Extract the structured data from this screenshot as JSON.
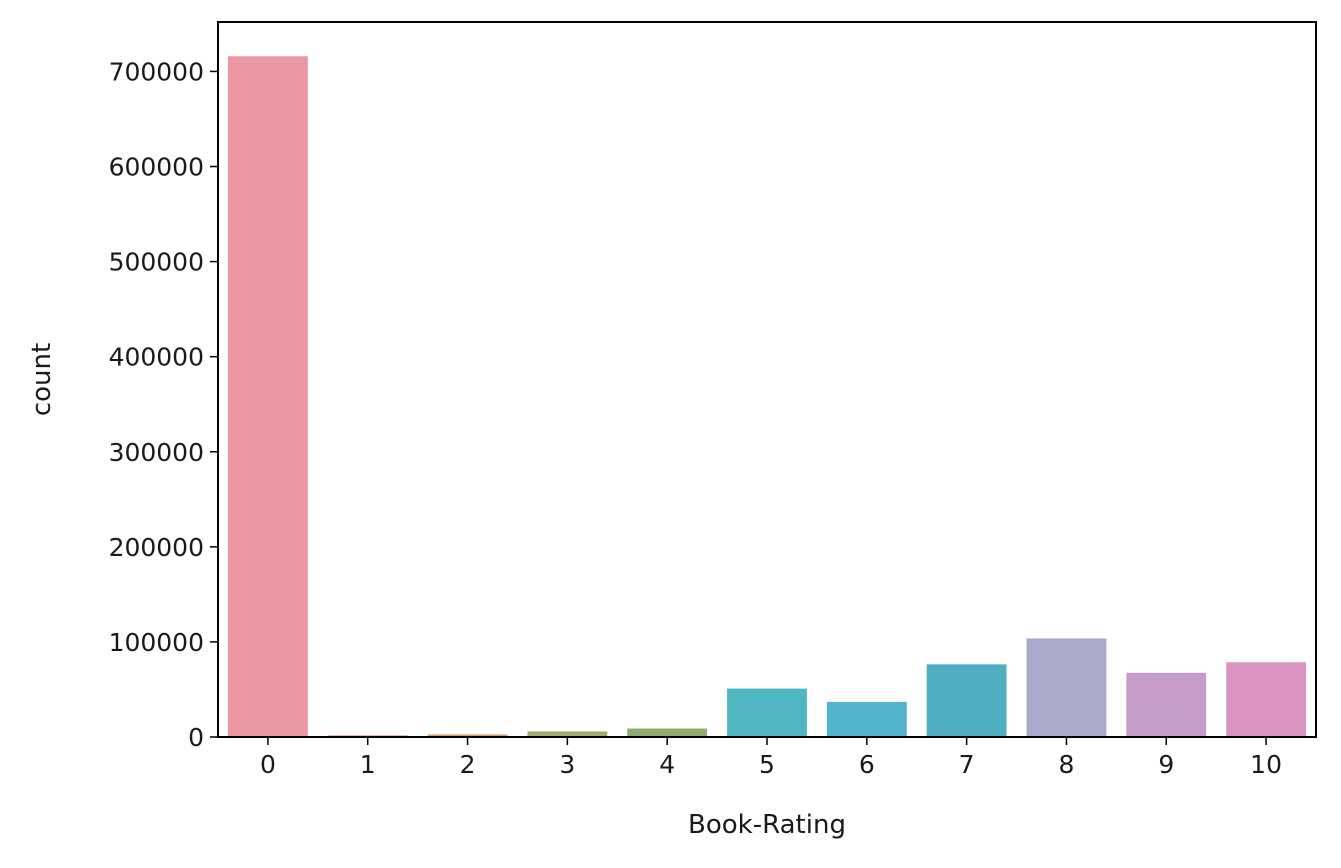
{
  "chart_data": {
    "type": "bar",
    "categories": [
      "0",
      "1",
      "2",
      "3",
      "4",
      "5",
      "6",
      "7",
      "8",
      "9",
      "10"
    ],
    "values": [
      716000,
      1770,
      2760,
      5820,
      8900,
      50900,
      36900,
      76400,
      103700,
      67500,
      78600
    ],
    "colors": [
      "#eb97a2",
      "#e39882",
      "#d3a274",
      "#a4aa6f",
      "#8cac70",
      "#51b6c3",
      "#4fb4cc",
      "#4faebf",
      "#a9a9cc",
      "#c59bc8",
      "#db94c0"
    ],
    "xlabel": "Book-Rating",
    "ylabel": "count",
    "ylim": [
      0,
      752000
    ],
    "yticks": [
      0,
      100000,
      200000,
      300000,
      400000,
      500000,
      600000,
      700000
    ],
    "ytick_labels": [
      "0",
      "100000",
      "200000",
      "300000",
      "400000",
      "500000",
      "600000",
      "700000"
    ],
    "grid": false,
    "legend": "none"
  }
}
